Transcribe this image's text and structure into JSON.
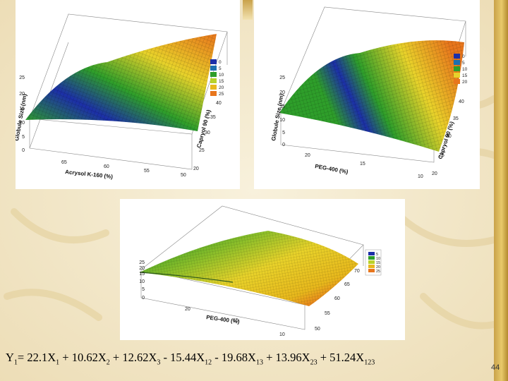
{
  "plots": [
    {
      "id": "plot-a",
      "z_label": "Globule Size (nm)",
      "x_label": "Acrysol K-160 (%)",
      "y_label": "Capryol 90 (%)",
      "z_ticks": [
        "0",
        "5",
        "10",
        "15",
        "20",
        "25"
      ],
      "x_ticks": [
        "65",
        "60",
        "55",
        "50"
      ],
      "y_ticks": [
        "20",
        "25",
        "30",
        "35",
        "40"
      ],
      "legend": [
        "0",
        "5",
        "10",
        "15",
        "20",
        "25"
      ]
    },
    {
      "id": "plot-b",
      "z_label": "Globule Size (nm)",
      "x_label": "PEG-400 (%)",
      "y_label": "Capryol 90 (%)",
      "z_ticks": [
        "0",
        "5",
        "10",
        "15",
        "20",
        "25"
      ],
      "x_ticks": [
        "20",
        "15",
        "10"
      ],
      "y_ticks": [
        "20",
        "25",
        "30",
        "35",
        "40"
      ],
      "legend": [
        "0",
        "5",
        "10",
        "15",
        "20"
      ]
    },
    {
      "id": "plot-c",
      "z_label": "",
      "x_label": "PEG-400 (%)",
      "y_label": "",
      "z_ticks": [
        "0",
        "5",
        "10",
        "15",
        "20",
        "25"
      ],
      "x_ticks": [
        "20",
        "15",
        "10"
      ],
      "y_ticks": [
        "50",
        "55",
        "60",
        "65",
        "70"
      ],
      "legend": [
        "5",
        "10",
        "15",
        "20",
        "25"
      ]
    }
  ],
  "colors": {
    "blue": "#1c2fa8",
    "green": "#2e9e2a",
    "yellow": "#e8d22a",
    "orange": "#e8761c"
  },
  "equation": {
    "y": "Y",
    "y_sub": "1",
    "eq": "= 22.1X",
    "t1_sub": "1",
    "t2": " + 10.62X",
    "t2_sub": "2",
    "t3": " + 12.62X",
    "t3_sub": "3",
    "t4": " - 15.44X",
    "t4_sub": "12",
    "t5": " - 19.68X",
    "t5_sub": "13",
    "t6": " + 13.96X",
    "t6_sub": "23",
    "t7": " + 51.24X",
    "t7_sub": "123"
  },
  "slide_number": "44"
}
